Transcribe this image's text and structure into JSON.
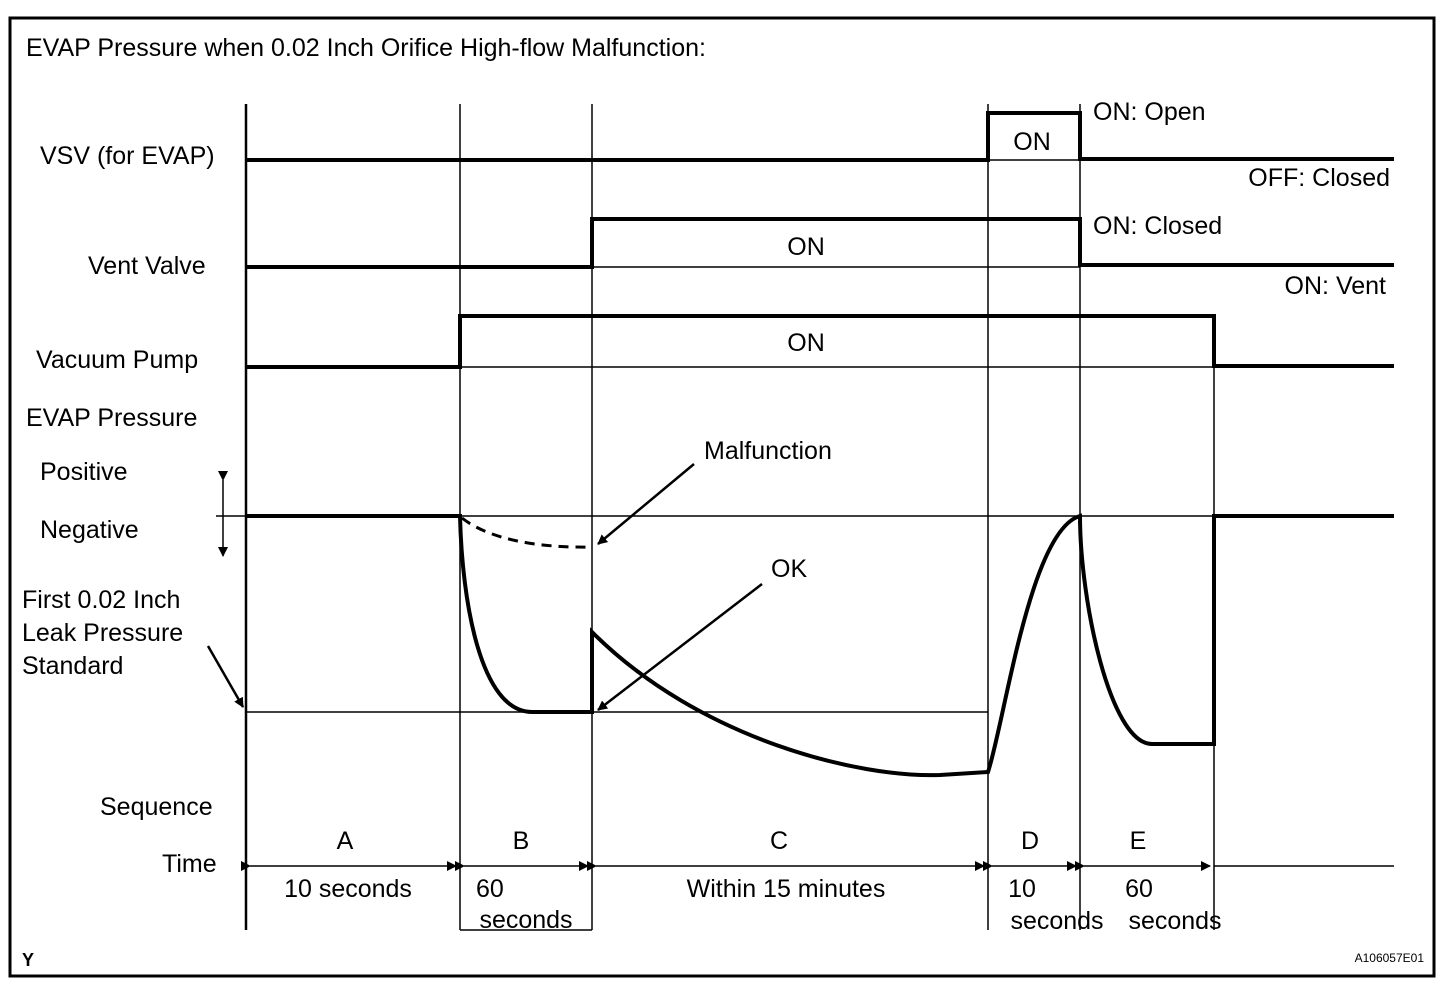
{
  "title": "EVAP Pressure when 0.02 Inch Orifice High-flow Malfunction:",
  "signals": {
    "vsv": {
      "label": "VSV (for EVAP)",
      "on_text": "ON",
      "on_state": "ON: Open",
      "off_state": "OFF: Closed"
    },
    "vent": {
      "label": "Vent Valve",
      "on_text": "ON",
      "on_state": "ON: Closed",
      "off_state": "ON: Vent"
    },
    "pump": {
      "label": "Vacuum Pump",
      "on_text": "ON"
    }
  },
  "pressure": {
    "label": "EVAP Pressure",
    "positive": "Positive",
    "negative": "Negative",
    "standard_line1": "First 0.02 Inch",
    "standard_line2": "Leak Pressure",
    "standard_line3": "Standard",
    "malfunction": "Malfunction",
    "ok": "OK"
  },
  "sequence_label": "Sequence",
  "time_label": "Time",
  "phases": [
    {
      "letter": "A",
      "time1": "10 seconds",
      "time2": ""
    },
    {
      "letter": "B",
      "time1": "60",
      "time2": "seconds"
    },
    {
      "letter": "C",
      "time1": "Within 15 minutes",
      "time2": ""
    },
    {
      "letter": "D",
      "time1": "10",
      "time2": "seconds"
    },
    {
      "letter": "E",
      "time1": "60",
      "time2": "seconds"
    }
  ],
  "footer_left": "Y",
  "footer_right": "A106057E01",
  "colors": {
    "line": "#000000",
    "background": "#ffffff"
  }
}
